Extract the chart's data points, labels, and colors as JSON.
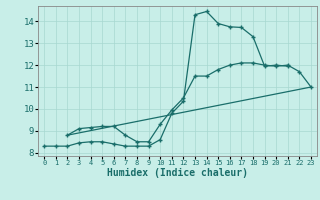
{
  "xlabel": "Humidex (Indice chaleur)",
  "xlim": [
    -0.5,
    23.5
  ],
  "ylim": [
    7.85,
    14.7
  ],
  "yticks": [
    8,
    9,
    10,
    11,
    12,
    13,
    14
  ],
  "xticks": [
    0,
    1,
    2,
    3,
    4,
    5,
    6,
    7,
    8,
    9,
    10,
    11,
    12,
    13,
    14,
    15,
    16,
    17,
    18,
    19,
    20,
    21,
    22,
    23
  ],
  "bg_color": "#c8eee8",
  "line_color": "#1a6e6a",
  "curve1_x": [
    0,
    1,
    2,
    3,
    4,
    5,
    6,
    7,
    8,
    9,
    10,
    11,
    12,
    13,
    14,
    15,
    16,
    17,
    18,
    19,
    20,
    21
  ],
  "curve1_y": [
    8.3,
    8.3,
    8.3,
    8.45,
    8.5,
    8.5,
    8.4,
    8.3,
    8.3,
    8.3,
    8.6,
    9.8,
    10.35,
    14.3,
    14.45,
    13.9,
    13.75,
    13.72,
    13.3,
    11.95,
    12.0,
    11.95
  ],
  "curve2_x": [
    2,
    3,
    4,
    5,
    6,
    7,
    8,
    9,
    10,
    11,
    12,
    13,
    14,
    15,
    16,
    17,
    18,
    19,
    20,
    21,
    22,
    23
  ],
  "curve2_y": [
    8.8,
    9.1,
    9.15,
    9.2,
    9.2,
    8.8,
    8.5,
    8.5,
    9.3,
    9.95,
    10.5,
    11.5,
    11.5,
    11.8,
    12.0,
    12.1,
    12.1,
    12.0,
    11.95,
    12.0,
    11.7,
    11.0
  ],
  "line3_x": [
    2,
    23
  ],
  "line3_y": [
    8.8,
    11.0
  ]
}
